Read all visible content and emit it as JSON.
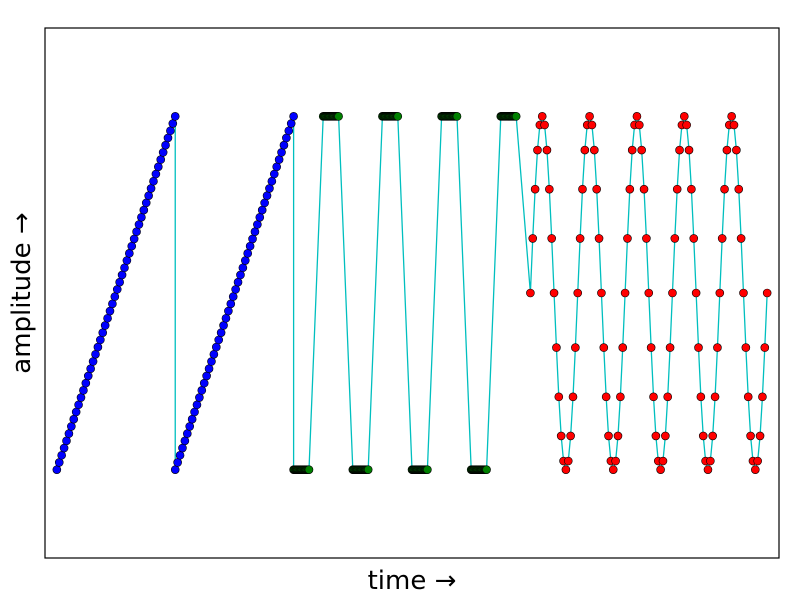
{
  "chart_data": {
    "type": "line",
    "xlabel": "time →",
    "ylabel": "amplitude →",
    "xlim": [
      -20,
      1220
    ],
    "ylim": [
      -1.5,
      1.5
    ],
    "grid": false,
    "xticks": [],
    "yticks": [],
    "line_color": "#00BFBF",
    "series": [
      {
        "style": "sawtooth",
        "marker_color": "#0000FF",
        "segments": [
          {
            "x_start": 0,
            "x_end": 200,
            "y_start": -1.0,
            "y_end": 1.0,
            "points": 50
          },
          {
            "x_start": 200,
            "x_end": 400,
            "y_start": -1.0,
            "y_end": 1.0,
            "points": 50
          }
        ]
      },
      {
        "style": "square",
        "marker_color": "#008000",
        "periods": 4,
        "x_start": 400,
        "x_end": 800,
        "points_per_half": 20,
        "low": -1.0,
        "high": 1.0
      },
      {
        "style": "sine",
        "marker_color": "#FF0000",
        "x_start": 800,
        "x_end": 1200,
        "periods": 5,
        "points_per_period": 20,
        "amplitude": 1.0
      }
    ]
  }
}
